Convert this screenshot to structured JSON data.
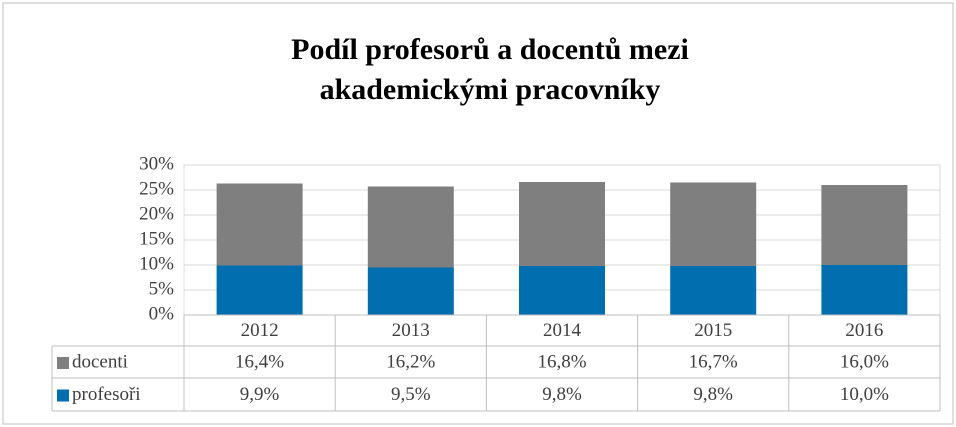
{
  "chart_data": {
    "type": "stacked_bar",
    "title": "Podíl profesorů a docentů mezi akademickými pracovníky",
    "categories": [
      "2012",
      "2013",
      "2014",
      "2015",
      "2016"
    ],
    "series": [
      {
        "name": "docenti",
        "color": "#7f7f7f",
        "values": [
          16.4,
          16.2,
          16.8,
          16.7,
          16.0
        ],
        "value_labels": [
          "16,4%",
          "16,2%",
          "16,8%",
          "16,7%",
          "16,0%"
        ]
      },
      {
        "name": "profesoři",
        "color": "#006eaf",
        "values": [
          9.9,
          9.5,
          9.8,
          9.8,
          10.0
        ],
        "value_labels": [
          "9,9%",
          "9,5%",
          "9,8%",
          "9,8%",
          "10,0%"
        ]
      }
    ],
    "ylim": [
      0,
      30
    ],
    "yticks": [
      {
        "value": 0,
        "label": "0%"
      },
      {
        "value": 5,
        "label": "5%"
      },
      {
        "value": 10,
        "label": "10%"
      },
      {
        "value": 15,
        "label": "15%"
      },
      {
        "value": 20,
        "label": "20%"
      },
      {
        "value": 25,
        "label": "25%"
      },
      {
        "value": 30,
        "label": "30%"
      }
    ],
    "grid": true,
    "data_table": true
  }
}
